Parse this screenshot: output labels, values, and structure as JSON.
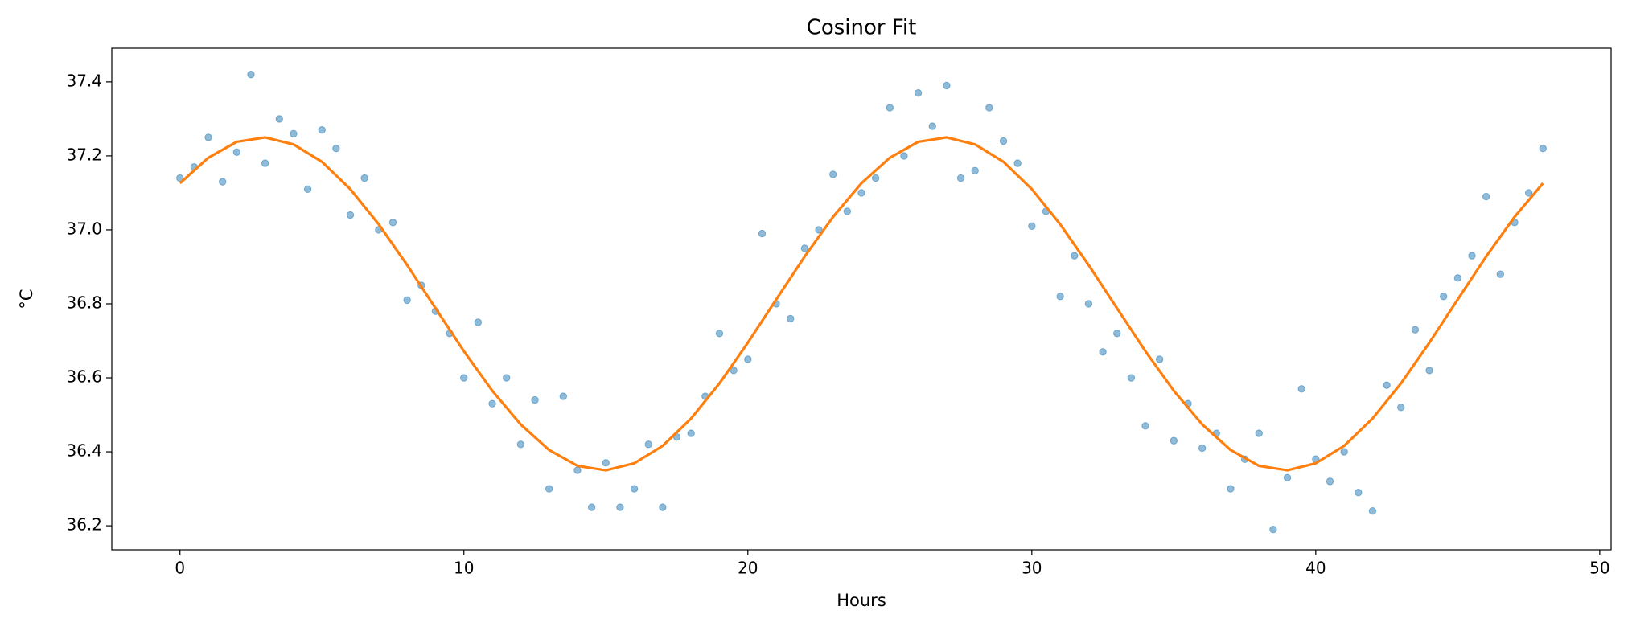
{
  "chart_data": {
    "type": "scatter",
    "title": "Cosinor Fit",
    "xlabel": "Hours",
    "ylabel": "°C",
    "xlim": [
      -2.4,
      50.4
    ],
    "ylim": [
      36.135,
      37.491
    ],
    "xticks": [
      0,
      10,
      20,
      30,
      40,
      50
    ],
    "yticks": [
      36.2,
      36.4,
      36.6,
      36.8,
      {
        "value": 37,
        "label": "37.0"
      },
      37.2,
      37.4
    ],
    "grid": false,
    "series": [
      {
        "type": "scatter",
        "color": "#1f77b4",
        "x": [
          0,
          0.5,
          1,
          1.5,
          2,
          2.5,
          3,
          3.5,
          4,
          4.5,
          5,
          5.5,
          6,
          6.5,
          7,
          7.5,
          8,
          8.5,
          9,
          9.5,
          10,
          10.5,
          11,
          11.5,
          12,
          12.5,
          13,
          13.5,
          14,
          14.5,
          15,
          15.5,
          16,
          16.5,
          17,
          17.5,
          18,
          18.5,
          19,
          19.5,
          20,
          20.5,
          21,
          21.5,
          22,
          22.5,
          23,
          23.5,
          24,
          24.5,
          25,
          25.5,
          26,
          26.5,
          27,
          27.5,
          28,
          28.5,
          29,
          29.5,
          30,
          30.5,
          31,
          31.5,
          32,
          32.5,
          33,
          33.5,
          34,
          34.5,
          35,
          35.5,
          36,
          36.5,
          37,
          37.5,
          38,
          38.5,
          39,
          39.5,
          40,
          40.5,
          41,
          41.5,
          42,
          42.5,
          43,
          43.5,
          44,
          44.5,
          45,
          45.5,
          46,
          46.5,
          47,
          47.5,
          48
        ],
        "values": [
          37.14,
          37.17,
          37.25,
          37.13,
          37.21,
          37.42,
          37.18,
          37.3,
          37.26,
          37.11,
          37.27,
          37.22,
          37.04,
          37.14,
          37.0,
          37.02,
          36.81,
          36.85,
          36.78,
          36.72,
          36.6,
          36.75,
          36.53,
          36.6,
          36.42,
          36.54,
          36.3,
          36.55,
          36.35,
          36.25,
          36.37,
          36.25,
          36.3,
          36.42,
          36.25,
          36.44,
          36.45,
          36.55,
          36.72,
          36.62,
          36.65,
          36.99,
          36.8,
          36.76,
          36.95,
          37.0,
          37.15,
          37.05,
          37.1,
          37.14,
          37.33,
          37.2,
          37.37,
          37.28,
          37.39,
          37.14,
          37.16,
          37.33,
          37.24,
          37.18,
          37.01,
          37.05,
          36.82,
          36.93,
          36.8,
          36.67,
          36.72,
          36.6,
          36.47,
          36.65,
          36.43,
          36.53,
          36.41,
          36.45,
          36.3,
          36.38,
          36.45,
          36.19,
          36.33,
          36.57,
          36.38,
          36.32,
          36.4,
          36.29,
          36.24,
          36.58,
          36.52,
          36.73,
          36.62,
          36.82,
          36.87,
          36.93,
          37.09,
          36.88,
          37.02,
          37.1,
          37.22
        ]
      },
      {
        "type": "line",
        "color": "#ff7f0e",
        "x": [
          0,
          1,
          2,
          3,
          4,
          5,
          6,
          7,
          8,
          9,
          10,
          11,
          12,
          13,
          14,
          15,
          16,
          17,
          18,
          19,
          20,
          21,
          22,
          23,
          24,
          25,
          26,
          27,
          28,
          29,
          30,
          31,
          32,
          33,
          34,
          35,
          36,
          37,
          38,
          39,
          40,
          41,
          42,
          43,
          44,
          45,
          46,
          47,
          48
        ],
        "values": [
          37.126,
          37.195,
          37.238,
          37.25,
          37.231,
          37.184,
          37.11,
          37.015,
          36.905,
          36.788,
          36.672,
          36.565,
          36.474,
          36.405,
          36.362,
          36.35,
          36.369,
          36.416,
          36.49,
          36.585,
          36.695,
          36.812,
          36.928,
          37.035,
          37.126,
          37.195,
          37.238,
          37.25,
          37.231,
          37.184,
          37.11,
          37.015,
          36.905,
          36.788,
          36.672,
          36.565,
          36.474,
          36.405,
          36.362,
          36.35,
          36.369,
          36.416,
          36.49,
          36.585,
          36.695,
          36.812,
          36.928,
          37.035,
          37.126
        ]
      }
    ]
  }
}
